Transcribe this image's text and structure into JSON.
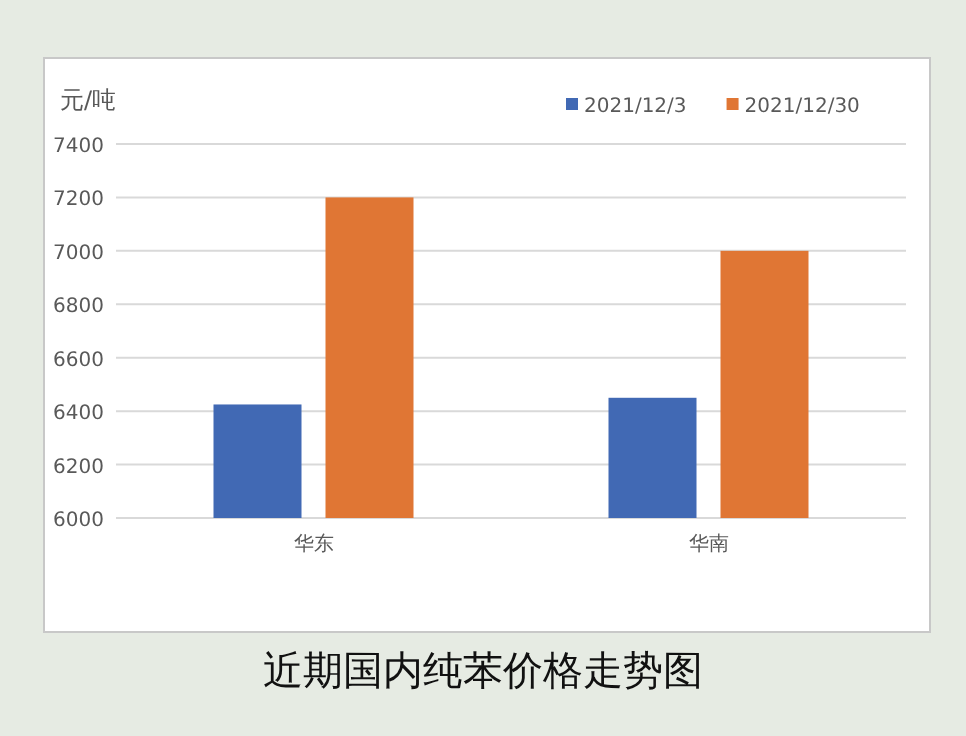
{
  "chart_data": {
    "type": "bar",
    "title": "近期国内纯苯价格走势图",
    "ylabel": "元/吨",
    "categories": [
      "华东",
      "华南"
    ],
    "series": [
      {
        "name": "2021/12/3",
        "color": "#4169b4",
        "values": [
          6425,
          6450
        ]
      },
      {
        "name": "2021/12/30",
        "color": "#e07634",
        "values": [
          7200,
          7000
        ]
      }
    ],
    "ylim": [
      6000,
      7400
    ],
    "yticks": [
      6000,
      6200,
      6400,
      6600,
      6800,
      7000,
      7200,
      7400
    ],
    "grid": "y",
    "legend": "top right"
  }
}
